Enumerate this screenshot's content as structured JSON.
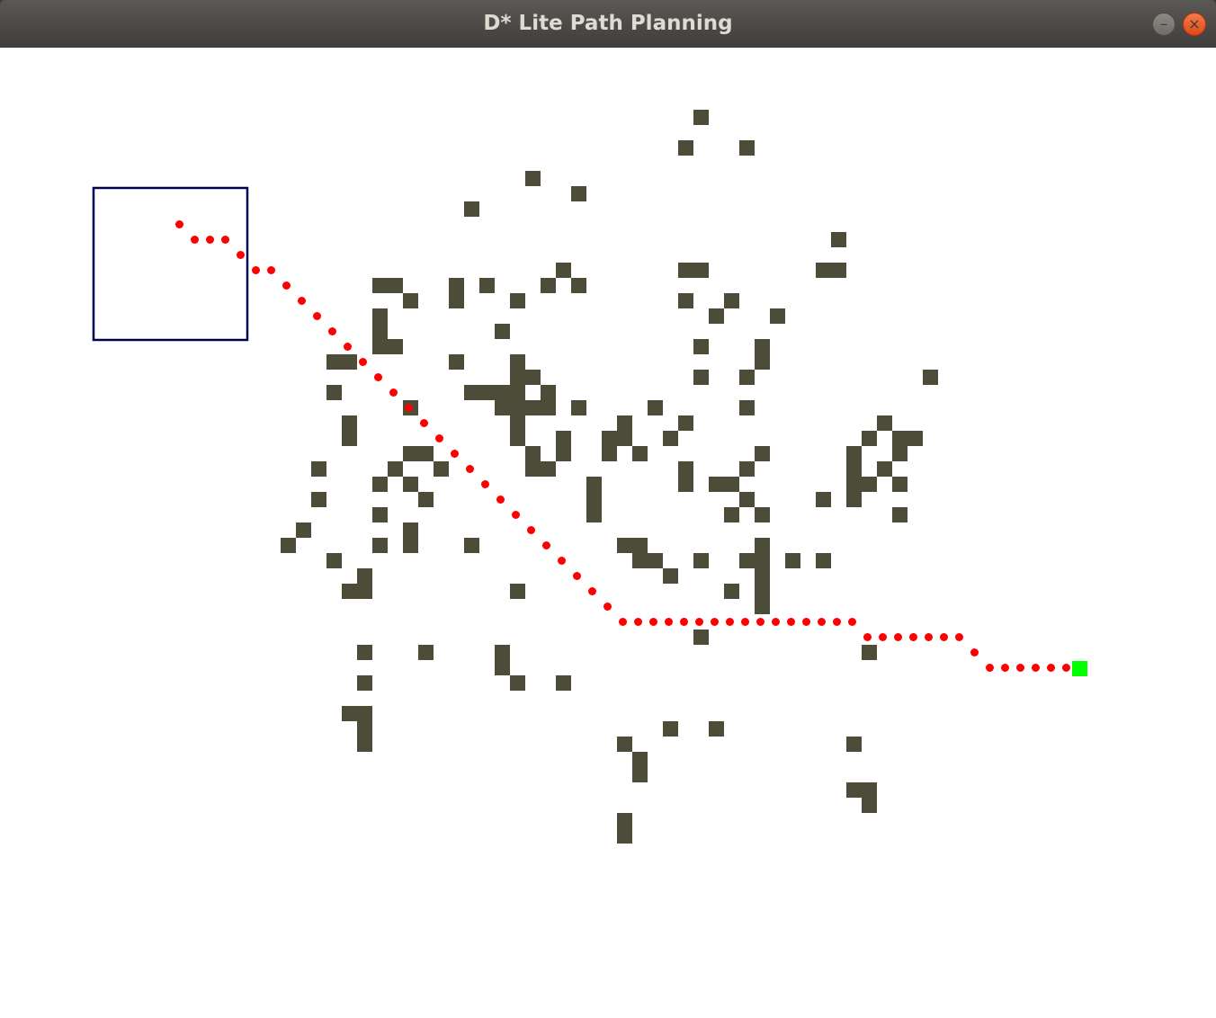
{
  "window": {
    "title": "D* Lite Path Planning",
    "minimize_glyph": "–",
    "close_glyph": "×"
  },
  "grid": {
    "cell_size_px": 17,
    "obstacle_color": "#4d4c38",
    "path_color": "#ff0000",
    "goal_color": "#00ff00",
    "sensor_box_color": "#000050",
    "obstacles": [
      [
        45,
        4
      ],
      [
        44,
        6
      ],
      [
        48,
        6
      ],
      [
        34,
        8
      ],
      [
        37,
        9
      ],
      [
        30,
        10
      ],
      [
        54,
        12
      ],
      [
        36,
        14
      ],
      [
        44,
        14
      ],
      [
        45,
        14
      ],
      [
        53,
        14
      ],
      [
        54,
        14
      ],
      [
        24,
        15
      ],
      [
        25,
        15
      ],
      [
        29,
        15
      ],
      [
        31,
        15
      ],
      [
        35,
        15
      ],
      [
        37,
        15
      ],
      [
        26,
        16
      ],
      [
        29,
        16
      ],
      [
        33,
        16
      ],
      [
        44,
        16
      ],
      [
        47,
        16
      ],
      [
        24,
        17
      ],
      [
        46,
        17
      ],
      [
        50,
        17
      ],
      [
        24,
        18
      ],
      [
        32,
        18
      ],
      [
        24,
        19
      ],
      [
        25,
        19
      ],
      [
        45,
        19
      ],
      [
        49,
        19
      ],
      [
        21,
        20
      ],
      [
        22,
        20
      ],
      [
        29,
        20
      ],
      [
        33,
        20
      ],
      [
        49,
        20
      ],
      [
        33,
        21
      ],
      [
        34,
        21
      ],
      [
        45,
        21
      ],
      [
        48,
        21
      ],
      [
        60,
        21
      ],
      [
        21,
        22
      ],
      [
        30,
        22
      ],
      [
        31,
        22
      ],
      [
        32,
        22
      ],
      [
        33,
        22
      ],
      [
        35,
        22
      ],
      [
        26,
        23
      ],
      [
        32,
        23
      ],
      [
        33,
        23
      ],
      [
        34,
        23
      ],
      [
        35,
        23
      ],
      [
        37,
        23
      ],
      [
        42,
        23
      ],
      [
        48,
        23
      ],
      [
        22,
        24
      ],
      [
        33,
        24
      ],
      [
        40,
        24
      ],
      [
        44,
        24
      ],
      [
        57,
        24
      ],
      [
        22,
        25
      ],
      [
        33,
        25
      ],
      [
        36,
        25
      ],
      [
        39,
        25
      ],
      [
        40,
        25
      ],
      [
        43,
        25
      ],
      [
        56,
        25
      ],
      [
        58,
        25
      ],
      [
        59,
        25
      ],
      [
        26,
        26
      ],
      [
        27,
        26
      ],
      [
        34,
        26
      ],
      [
        36,
        26
      ],
      [
        39,
        26
      ],
      [
        41,
        26
      ],
      [
        49,
        26
      ],
      [
        55,
        26
      ],
      [
        58,
        26
      ],
      [
        20,
        27
      ],
      [
        25,
        27
      ],
      [
        28,
        27
      ],
      [
        34,
        27
      ],
      [
        35,
        27
      ],
      [
        44,
        27
      ],
      [
        48,
        27
      ],
      [
        55,
        27
      ],
      [
        57,
        27
      ],
      [
        24,
        28
      ],
      [
        26,
        28
      ],
      [
        38,
        28
      ],
      [
        44,
        28
      ],
      [
        46,
        28
      ],
      [
        47,
        28
      ],
      [
        55,
        28
      ],
      [
        56,
        28
      ],
      [
        58,
        28
      ],
      [
        20,
        29
      ],
      [
        27,
        29
      ],
      [
        38,
        29
      ],
      [
        48,
        29
      ],
      [
        53,
        29
      ],
      [
        55,
        29
      ],
      [
        24,
        30
      ],
      [
        38,
        30
      ],
      [
        47,
        30
      ],
      [
        49,
        30
      ],
      [
        58,
        30
      ],
      [
        19,
        31
      ],
      [
        26,
        31
      ],
      [
        18,
        32
      ],
      [
        24,
        32
      ],
      [
        26,
        32
      ],
      [
        30,
        32
      ],
      [
        40,
        32
      ],
      [
        41,
        32
      ],
      [
        49,
        32
      ],
      [
        21,
        33
      ],
      [
        41,
        33
      ],
      [
        42,
        33
      ],
      [
        45,
        33
      ],
      [
        48,
        33
      ],
      [
        49,
        33
      ],
      [
        51,
        33
      ],
      [
        53,
        33
      ],
      [
        23,
        34
      ],
      [
        43,
        34
      ],
      [
        49,
        34
      ],
      [
        22,
        35
      ],
      [
        23,
        35
      ],
      [
        33,
        35
      ],
      [
        47,
        35
      ],
      [
        49,
        35
      ],
      [
        49,
        36
      ],
      [
        45,
        38
      ],
      [
        23,
        39
      ],
      [
        27,
        39
      ],
      [
        32,
        39
      ],
      [
        56,
        39
      ],
      [
        32,
        40
      ],
      [
        23,
        41
      ],
      [
        33,
        41
      ],
      [
        36,
        41
      ],
      [
        22,
        43
      ],
      [
        23,
        43
      ],
      [
        23,
        44
      ],
      [
        43,
        44
      ],
      [
        46,
        44
      ],
      [
        23,
        45
      ],
      [
        40,
        45
      ],
      [
        55,
        45
      ],
      [
        41,
        46
      ],
      [
        41,
        47
      ],
      [
        55,
        48
      ],
      [
        56,
        48
      ],
      [
        56,
        49
      ],
      [
        40,
        50
      ],
      [
        40,
        51
      ]
    ],
    "path": [
      [
        11,
        11
      ],
      [
        12,
        12
      ],
      [
        13,
        12
      ],
      [
        14,
        12
      ],
      [
        15,
        13
      ],
      [
        16,
        14
      ],
      [
        17,
        14
      ],
      [
        18,
        15
      ],
      [
        19,
        16
      ],
      [
        20,
        17
      ],
      [
        21,
        18
      ],
      [
        22,
        19
      ],
      [
        23,
        20
      ],
      [
        24,
        21
      ],
      [
        25,
        22
      ],
      [
        26,
        23
      ],
      [
        27,
        24
      ],
      [
        28,
        25
      ],
      [
        29,
        26
      ],
      [
        30,
        27
      ],
      [
        31,
        28
      ],
      [
        32,
        29
      ],
      [
        33,
        30
      ],
      [
        34,
        31
      ],
      [
        35,
        32
      ],
      [
        36,
        33
      ],
      [
        37,
        34
      ],
      [
        38,
        35
      ],
      [
        39,
        36
      ],
      [
        40,
        37
      ],
      [
        41,
        37
      ],
      [
        42,
        37
      ],
      [
        43,
        37
      ],
      [
        44,
        37
      ],
      [
        45,
        37
      ],
      [
        46,
        37
      ],
      [
        47,
        37
      ],
      [
        48,
        37
      ],
      [
        49,
        37
      ],
      [
        50,
        37
      ],
      [
        51,
        37
      ],
      [
        52,
        37
      ],
      [
        53,
        37
      ],
      [
        54,
        37
      ],
      [
        55,
        37
      ],
      [
        56,
        38
      ],
      [
        57,
        38
      ],
      [
        58,
        38
      ],
      [
        59,
        38
      ],
      [
        60,
        38
      ],
      [
        61,
        38
      ],
      [
        62,
        38
      ],
      [
        63,
        39
      ],
      [
        64,
        40
      ],
      [
        65,
        40
      ],
      [
        66,
        40
      ],
      [
        67,
        40
      ],
      [
        68,
        40
      ],
      [
        69,
        40
      ]
    ],
    "goal": [
      70,
      40
    ],
    "sensor_box": {
      "left_cell": 6,
      "top_cell": 9,
      "right_cell": 16,
      "bottom_cell": 19
    }
  }
}
